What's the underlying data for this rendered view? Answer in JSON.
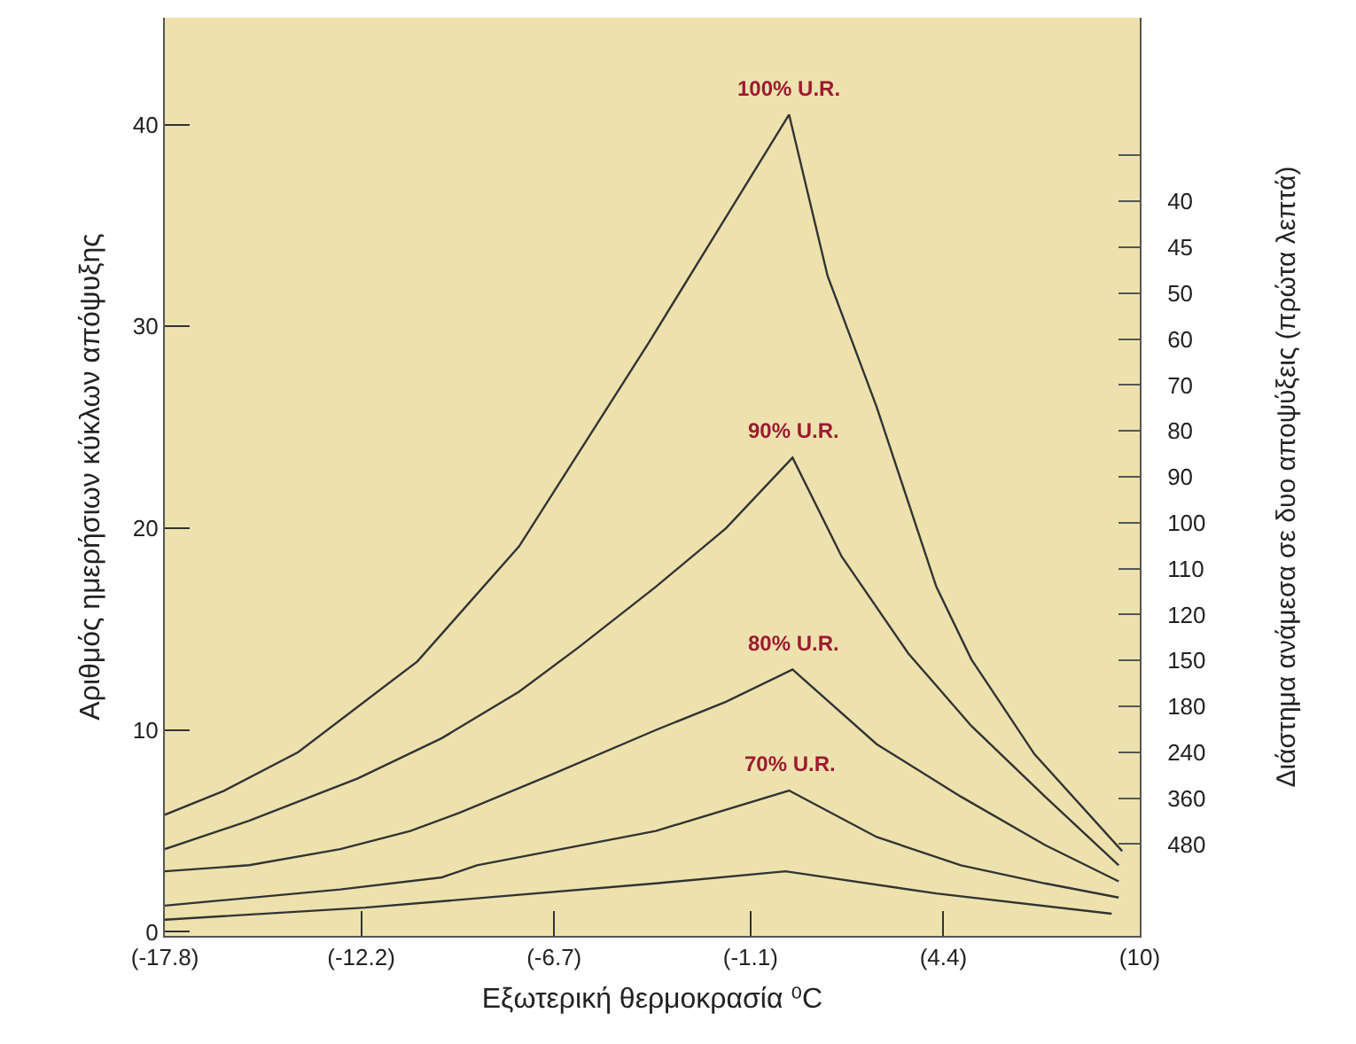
{
  "chart_data": {
    "type": "line",
    "xlabel": "Εξωτερική θερμοκρασία ⁰C",
    "ylabel": "Αριθμός ημερήσιων κύκλων απόψυξης",
    "y2label": "Διάστημα ανάμεσα σε δυο αποψύξεις (πρώτα λεπτά)",
    "xlim": [
      -17.8,
      10
    ],
    "xticks": [
      {
        "value": -17.8,
        "label": "(-17.8)"
      },
      {
        "value": -12.2,
        "label": "(-12.2)"
      },
      {
        "value": -6.7,
        "label": "(-6.7)"
      },
      {
        "value": -1.1,
        "label": "(-1.1)"
      },
      {
        "value": 4.4,
        "label": "(4.4)"
      },
      {
        "value": 10,
        "label": "(10)"
      }
    ],
    "ylim": [
      -0.2,
      45.3
    ],
    "yticks": [
      0,
      10,
      20,
      30,
      40
    ],
    "y2_categories": [
      null,
      "40",
      "45",
      "50",
      "60",
      "70",
      "80",
      "90",
      "100",
      "110",
      "120",
      "150",
      "180",
      "240",
      "360",
      "480"
    ],
    "grid": false,
    "legend": false,
    "marker": "none",
    "line_style": "solid",
    "series": [
      {
        "name": "100% U.R.",
        "color": "#333333",
        "x": [
          -17.8,
          -16.1,
          -14.0,
          -10.6,
          -7.7,
          -4.0,
          0.0,
          1.1,
          2.5,
          4.2,
          5.2,
          7.0,
          9.5
        ],
        "values": [
          5.8,
          7.0,
          8.9,
          13.4,
          19.1,
          29.2,
          40.5,
          32.5,
          26.0,
          17.1,
          13.5,
          8.8,
          4.0
        ]
      },
      {
        "name": "90% U.R.",
        "color": "#333333",
        "x": [
          -17.8,
          -15.4,
          -12.3,
          -9.9,
          -7.7,
          -6.0,
          -3.8,
          -1.8,
          0.1,
          1.5,
          3.4,
          5.2,
          7.3,
          9.4
        ],
        "values": [
          4.1,
          5.5,
          7.6,
          9.6,
          11.9,
          14.1,
          17.1,
          20.0,
          23.5,
          18.6,
          13.8,
          10.2,
          6.7,
          3.3
        ]
      },
      {
        "name": "80% U.R.",
        "color": "#333333",
        "x": [
          -17.8,
          -15.4,
          -12.8,
          -10.8,
          -9.4,
          -6.9,
          -3.8,
          -1.8,
          0.1,
          2.5,
          4.9,
          7.3,
          9.4
        ],
        "values": [
          3.0,
          3.3,
          4.1,
          5.0,
          5.9,
          7.7,
          10.0,
          11.4,
          13.0,
          9.3,
          6.7,
          4.3,
          2.5
        ]
      },
      {
        "name": "70% U.R.",
        "color": "#333333",
        "x": [
          -17.8,
          -12.8,
          -9.9,
          -8.9,
          -3.8,
          0.0,
          2.5,
          4.9,
          7.3,
          9.4
        ],
        "values": [
          1.3,
          2.1,
          2.7,
          3.3,
          5.0,
          7.0,
          4.7,
          3.3,
          2.4,
          1.7
        ]
      },
      {
        "color": "#333333",
        "x": [
          -17.8,
          -12.1,
          -3.8,
          -0.1,
          4.2,
          9.2
        ],
        "values": [
          0.6,
          1.2,
          2.4,
          3.0,
          1.9,
          0.9
        ]
      }
    ]
  }
}
